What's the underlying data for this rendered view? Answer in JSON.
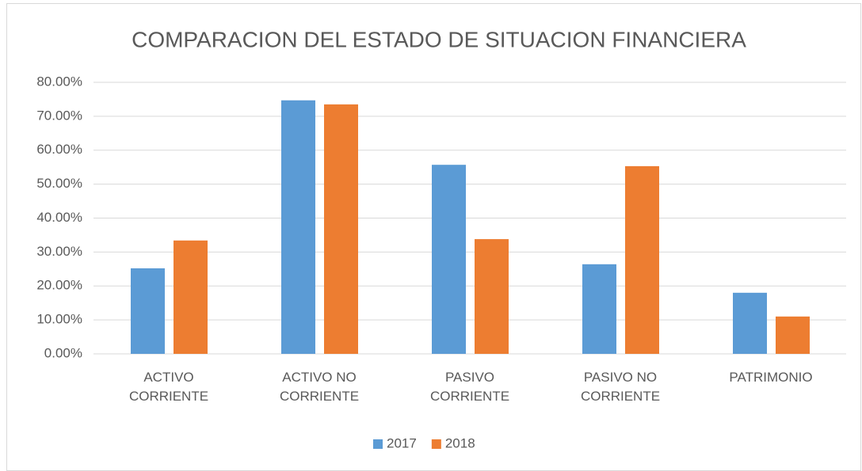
{
  "chart_data": {
    "type": "bar",
    "title": "COMPARACION DEL ESTADO DE SITUACION FINANCIERA",
    "categories": [
      "ACTIVO CORRIENTE",
      "ACTIVO NO CORRIENTE",
      "PASIVO CORRIENTE",
      "PASIVO NO CORRIENTE",
      "PATRIMONIO"
    ],
    "series": [
      {
        "name": "2017",
        "color": "#5b9bd5",
        "values": [
          25.2,
          74.7,
          55.7,
          26.4,
          18.0
        ]
      },
      {
        "name": "2018",
        "color": "#ed7d31",
        "values": [
          33.4,
          73.5,
          33.8,
          55.3,
          11.0
        ]
      }
    ],
    "ylim": [
      0,
      80
    ],
    "yticks": [
      {
        "value": 0,
        "label": "0.00%"
      },
      {
        "value": 10,
        "label": "10.00%"
      },
      {
        "value": 20,
        "label": "20.00%"
      },
      {
        "value": 30,
        "label": "30.00%"
      },
      {
        "value": 40,
        "label": "40.00%"
      },
      {
        "value": 50,
        "label": "50.00%"
      },
      {
        "value": 60,
        "label": "60.00%"
      },
      {
        "value": 70,
        "label": "70.00%"
      },
      {
        "value": 80,
        "label": "80.00%"
      }
    ],
    "grid": true,
    "legend": "bottom"
  }
}
